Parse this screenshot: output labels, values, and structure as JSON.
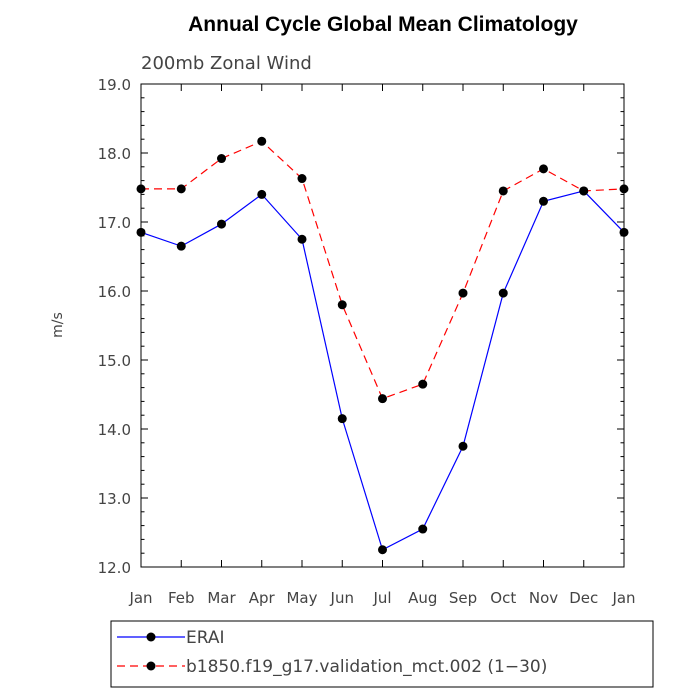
{
  "chart_data": {
    "type": "line",
    "title": "Annual Cycle Global Mean Climatology",
    "subtitle": "200mb Zonal Wind",
    "xlabel": "",
    "ylabel": "m/s",
    "categories": [
      "Jan",
      "Feb",
      "Mar",
      "Apr",
      "May",
      "Jun",
      "Jul",
      "Aug",
      "Sep",
      "Oct",
      "Nov",
      "Dec",
      "Jan"
    ],
    "ylim": [
      12.0,
      19.0
    ],
    "yticks": [
      "12.0",
      "13.0",
      "14.0",
      "15.0",
      "16.0",
      "17.0",
      "18.0",
      "19.0"
    ],
    "grid": false,
    "legend_position": "bottom",
    "series": [
      {
        "name": "ERAI",
        "color": "#0000ff",
        "dash": "solid",
        "marker": "circle",
        "values": [
          16.85,
          16.65,
          16.97,
          17.4,
          16.75,
          14.15,
          12.25,
          12.55,
          13.75,
          15.97,
          17.3,
          17.45,
          16.85
        ]
      },
      {
        "name": "b1850.f19_g17.validation_mct.002 (1−30)",
        "color": "#ff0000",
        "dash": "dashed",
        "marker": "circle",
        "values": [
          17.48,
          17.48,
          17.92,
          18.17,
          17.63,
          15.8,
          14.44,
          14.65,
          15.97,
          17.45,
          17.77,
          17.45,
          17.48
        ]
      }
    ]
  }
}
